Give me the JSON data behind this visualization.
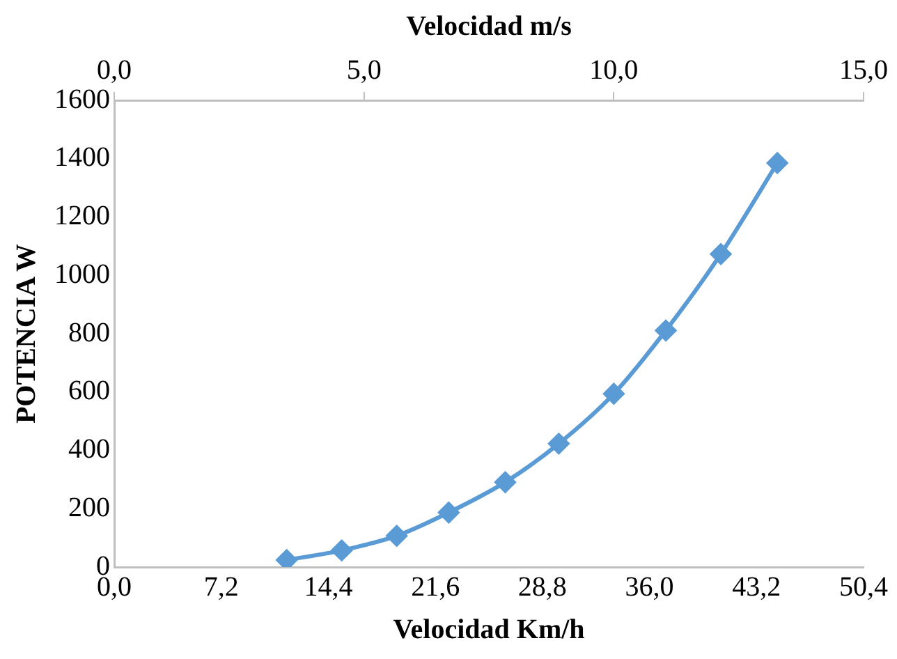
{
  "chart_data": {
    "type": "line",
    "xlabel": "Velocidad Km/h",
    "x2label": "Velocidad m/s",
    "ylabel": "POTENCIA W",
    "x": [
      11.6,
      15.3,
      19.0,
      22.5,
      26.3,
      29.9,
      33.6,
      37.1,
      40.8,
      44.6
    ],
    "values": [
      24,
      57,
      107,
      187,
      291,
      423,
      594,
      811,
      1073,
      1385
    ],
    "color": "#5b9bd5",
    "marker": "diamond",
    "xlim": [
      0,
      50.4
    ],
    "xticks": [
      {
        "value": 0,
        "label": "0,0"
      },
      {
        "value": 7.2,
        "label": "7,2"
      },
      {
        "value": 14.4,
        "label": "14,4"
      },
      {
        "value": 21.6,
        "label": "21,6"
      },
      {
        "value": 28.8,
        "label": "28,8"
      },
      {
        "value": 36,
        "label": "36,0"
      },
      {
        "value": 43.2,
        "label": "43,2"
      },
      {
        "value": 50.4,
        "label": "50,4"
      }
    ],
    "x2lim": [
      0,
      15
    ],
    "x2ticks": [
      {
        "value": 0,
        "label": "0,0"
      },
      {
        "value": 5,
        "label": "5,0"
      },
      {
        "value": 10,
        "label": "10,0"
      },
      {
        "value": 15,
        "label": "15,0"
      }
    ],
    "ylim": [
      0,
      1600
    ],
    "yticks": [
      0,
      200,
      400,
      600,
      800,
      1000,
      1200,
      1400,
      1600
    ]
  }
}
